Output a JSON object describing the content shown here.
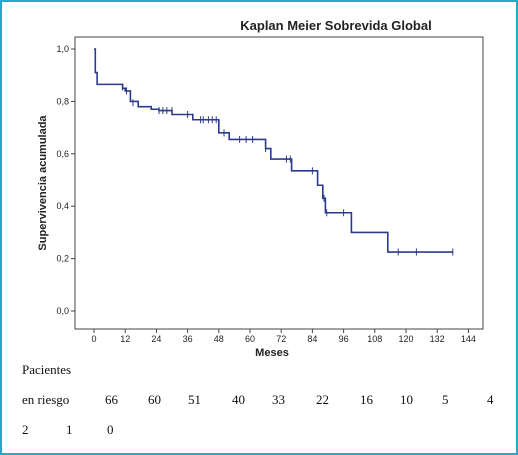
{
  "chart_data": {
    "type": "line",
    "title": "Kaplan Meier Sobrevida Global",
    "xlabel": "Meses",
    "ylabel": "Supervivencia acumulada",
    "xlim": [
      -5,
      144
    ],
    "ylim": [
      0,
      1.0
    ],
    "x_ticks": [
      "0",
      "12",
      "24",
      "36",
      "48",
      "60",
      "72",
      "84",
      "96",
      "108",
      "120",
      "132",
      "144"
    ],
    "y_ticks": [
      "0,0",
      "0,2",
      "0,4",
      "0,6",
      "0,8",
      "1,0"
    ],
    "series": [
      {
        "step_points": [
          [
            0,
            1.0
          ],
          [
            0.5,
            0.91
          ],
          [
            1.2,
            0.865
          ],
          [
            10,
            0.865
          ],
          [
            11,
            0.85
          ],
          [
            12,
            0.84
          ],
          [
            14,
            0.8
          ],
          [
            17,
            0.78
          ],
          [
            22,
            0.77
          ],
          [
            25,
            0.765
          ],
          [
            30,
            0.75
          ],
          [
            38,
            0.73
          ],
          [
            48,
            0.68
          ],
          [
            52,
            0.655
          ],
          [
            63,
            0.655
          ],
          [
            66,
            0.62
          ],
          [
            68,
            0.58
          ],
          [
            74,
            0.58
          ],
          [
            76,
            0.535
          ],
          [
            85,
            0.535
          ],
          [
            86,
            0.48
          ],
          [
            88,
            0.43
          ],
          [
            89,
            0.375
          ],
          [
            98,
            0.375
          ],
          [
            99,
            0.3
          ],
          [
            112,
            0.3
          ],
          [
            113,
            0.225
          ],
          [
            138,
            0.225
          ]
        ],
        "censored": [
          [
            11,
            0.855
          ],
          [
            12.5,
            0.84
          ],
          [
            15,
            0.795
          ],
          [
            25,
            0.765
          ],
          [
            26.5,
            0.765
          ],
          [
            28,
            0.765
          ],
          [
            30,
            0.765
          ],
          [
            36,
            0.75
          ],
          [
            41,
            0.73
          ],
          [
            42,
            0.73
          ],
          [
            44,
            0.73
          ],
          [
            45.5,
            0.73
          ],
          [
            47,
            0.73
          ],
          [
            50,
            0.68
          ],
          [
            56,
            0.655
          ],
          [
            58.5,
            0.655
          ],
          [
            61,
            0.655
          ],
          [
            66,
            0.62
          ],
          [
            74,
            0.58
          ],
          [
            75.5,
            0.58
          ],
          [
            84,
            0.535
          ],
          [
            88.5,
            0.43
          ],
          [
            89.5,
            0.375
          ],
          [
            96,
            0.375
          ],
          [
            117,
            0.225
          ],
          [
            124,
            0.225
          ],
          [
            138,
            0.225
          ]
        ]
      }
    ]
  },
  "risk_table": {
    "line1": "Pacientes",
    "prefix": "en riesgo",
    "values": [
      "66",
      "60",
      "51",
      "40",
      "33",
      "22",
      "16",
      "10",
      "5",
      "4",
      "2",
      "1",
      "0"
    ]
  }
}
